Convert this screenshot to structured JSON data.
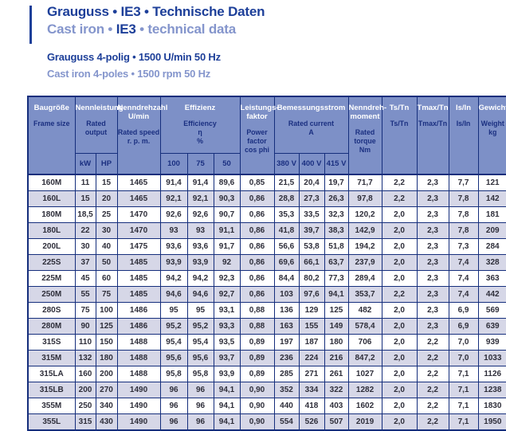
{
  "colors": {
    "dark_blue": "#1d3f99",
    "light_blue": "#8495cc",
    "head_blue": "#7d90c7",
    "line_blue": "#152e7c",
    "head_text_blue": "#1a2f80",
    "body_text": "#2e2e3a",
    "stripe": "#d6d7e7"
  },
  "header_block": {
    "title_de": "Grauguss • IE3 • Technische Daten",
    "title_en_prefix": "Cast iron • ",
    "title_en_ie3": "IE3",
    "title_en_suffix": " • technical data",
    "subtitle_de": "Grauguss 4-polig • 1500 U/min 50 Hz",
    "subtitle_en": "Cast iron 4-poles • 1500 rpm 50 Hz"
  },
  "table": {
    "columns": {
      "frame": {
        "de": "Baugröße",
        "en": "Frame size"
      },
      "output": {
        "de": "Nennleistung",
        "en": "Rated output",
        "sub": [
          "kW",
          "HP"
        ]
      },
      "speed": {
        "de": "Nenndrehzahl\nU/min",
        "en": "Rated speed\nr. p. m."
      },
      "efficiency": {
        "de": "Effizienz",
        "en": "Efficiency\nη\n%",
        "sub": [
          "100",
          "75",
          "50"
        ]
      },
      "power_factor": {
        "de": "Leistungs-\nfaktor",
        "en": "Power\nfactor\ncos phi"
      },
      "current": {
        "de": "Bemessungsstrom",
        "en": "Rated current\nA",
        "sub": [
          "380 V",
          "400 V",
          "415 V"
        ]
      },
      "torque": {
        "de": "Nenndreh-\nmoment",
        "en": "Rated\ntorque\nNm"
      },
      "ts_tn": {
        "de": "Ts/Tn",
        "en": "Ts/Tn"
      },
      "tmax_tn": {
        "de": "Tmax/Tn",
        "en": "Tmax/Tn"
      },
      "is_in": {
        "de": "Is/In",
        "en": "Is/In"
      },
      "weight": {
        "de": "Gewicht",
        "en": "Weight\nkg"
      }
    },
    "col_keys": [
      "frame-size",
      "kw",
      "hp",
      "speed",
      "eff-100",
      "eff-75",
      "eff-50",
      "cos-phi",
      "current-380v",
      "current-400v",
      "current-415v",
      "torque",
      "ts-tn",
      "tmax-tn",
      "is-in",
      "weight"
    ],
    "rows": [
      [
        "160M",
        "11",
        "15",
        "1465",
        "91,4",
        "91,4",
        "89,6",
        "0,85",
        "21,5",
        "20,4",
        "19,7",
        "71,7",
        "2,2",
        "2,3",
        "7,7",
        "121"
      ],
      [
        "160L",
        "15",
        "20",
        "1465",
        "92,1",
        "92,1",
        "90,3",
        "0,86",
        "28,8",
        "27,3",
        "26,3",
        "97,8",
        "2,2",
        "2,3",
        "7,8",
        "142"
      ],
      [
        "180M",
        "18,5",
        "25",
        "1470",
        "92,6",
        "92,6",
        "90,7",
        "0,86",
        "35,3",
        "33,5",
        "32,3",
        "120,2",
        "2,0",
        "2,3",
        "7,8",
        "181"
      ],
      [
        "180L",
        "22",
        "30",
        "1470",
        "93",
        "93",
        "91,1",
        "0,86",
        "41,8",
        "39,7",
        "38,3",
        "142,9",
        "2,0",
        "2,3",
        "7,8",
        "209"
      ],
      [
        "200L",
        "30",
        "40",
        "1475",
        "93,6",
        "93,6",
        "91,7",
        "0,86",
        "56,6",
        "53,8",
        "51,8",
        "194,2",
        "2,0",
        "2,3",
        "7,3",
        "284"
      ],
      [
        "225S",
        "37",
        "50",
        "1485",
        "93,9",
        "93,9",
        "92",
        "0,86",
        "69,6",
        "66,1",
        "63,7",
        "237,9",
        "2,0",
        "2,3",
        "7,4",
        "328"
      ],
      [
        "225M",
        "45",
        "60",
        "1485",
        "94,2",
        "94,2",
        "92,3",
        "0,86",
        "84,4",
        "80,2",
        "77,3",
        "289,4",
        "2,0",
        "2,3",
        "7,4",
        "363"
      ],
      [
        "250M",
        "55",
        "75",
        "1485",
        "94,6",
        "94,6",
        "92,7",
        "0,86",
        "103",
        "97,6",
        "94,1",
        "353,7",
        "2,2",
        "2,3",
        "7,4",
        "442"
      ],
      [
        "280S",
        "75",
        "100",
        "1486",
        "95",
        "95",
        "93,1",
        "0,88",
        "136",
        "129",
        "125",
        "482",
        "2,0",
        "2,3",
        "6,9",
        "569"
      ],
      [
        "280M",
        "90",
        "125",
        "1486",
        "95,2",
        "95,2",
        "93,3",
        "0,88",
        "163",
        "155",
        "149",
        "578,4",
        "2,0",
        "2,3",
        "6,9",
        "639"
      ],
      [
        "315S",
        "110",
        "150",
        "1488",
        "95,4",
        "95,4",
        "93,5",
        "0,89",
        "197",
        "187",
        "180",
        "706",
        "2,0",
        "2,2",
        "7,0",
        "939"
      ],
      [
        "315M",
        "132",
        "180",
        "1488",
        "95,6",
        "95,6",
        "93,7",
        "0,89",
        "236",
        "224",
        "216",
        "847,2",
        "2,0",
        "2,2",
        "7,0",
        "1033"
      ],
      [
        "315LA",
        "160",
        "200",
        "1488",
        "95,8",
        "95,8",
        "93,9",
        "0,89",
        "285",
        "271",
        "261",
        "1027",
        "2,0",
        "2,2",
        "7,1",
        "1126"
      ],
      [
        "315LB",
        "200",
        "270",
        "1490",
        "96",
        "96",
        "94,1",
        "0,90",
        "352",
        "334",
        "322",
        "1282",
        "2,0",
        "2,2",
        "7,1",
        "1238"
      ],
      [
        "355M",
        "250",
        "340",
        "1490",
        "96",
        "96",
        "94,1",
        "0,90",
        "440",
        "418",
        "403",
        "1602",
        "2,0",
        "2,2",
        "7,1",
        "1830"
      ],
      [
        "355L",
        "315",
        "430",
        "1490",
        "96",
        "96",
        "94,1",
        "0,90",
        "554",
        "526",
        "507",
        "2019",
        "2,0",
        "2,2",
        "7,1",
        "1950"
      ]
    ]
  }
}
